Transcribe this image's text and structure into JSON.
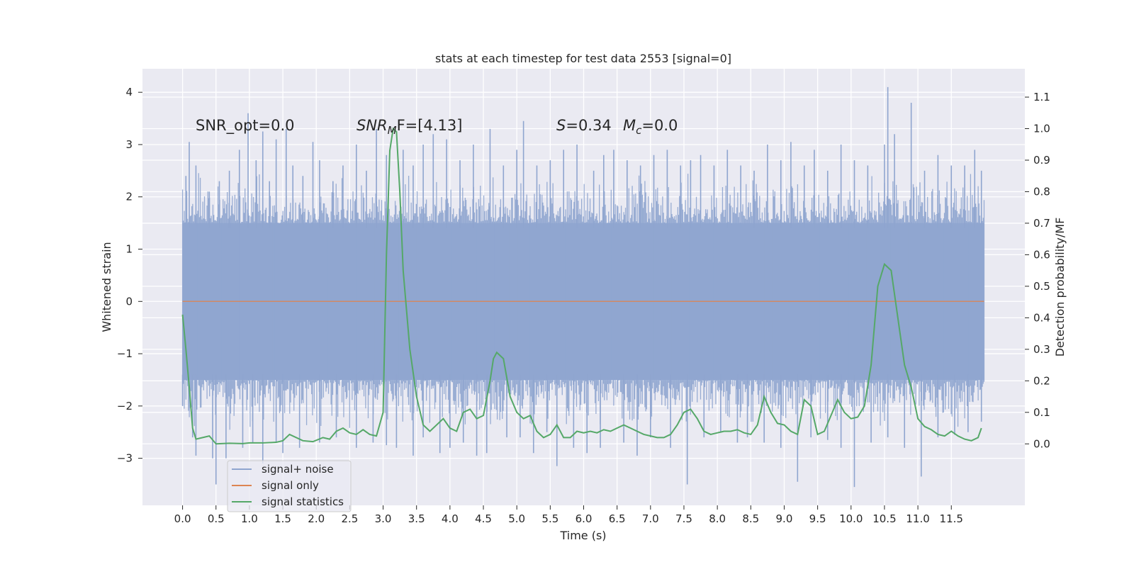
{
  "chart_data": {
    "type": "line",
    "title": "stats at each timestep for test data 2553 [signal=0]",
    "xlabel": "Time (s)",
    "ylabel": "Whitened strain",
    "ylabel_right": "Detection probability/MF",
    "xlim": [
      -0.6,
      12.6
    ],
    "ylim": [
      -3.9,
      4.45
    ],
    "ylim_right": [
      -0.195,
      1.19
    ],
    "x_ticks": [
      0.0,
      0.5,
      1.0,
      1.5,
      2.0,
      2.5,
      3.0,
      3.5,
      4.0,
      4.5,
      5.0,
      5.5,
      6.0,
      6.5,
      7.0,
      7.5,
      8.0,
      8.5,
      9.0,
      9.5,
      10.0,
      10.5,
      11.0,
      11.5
    ],
    "x_tick_labels": [
      "0.0",
      "0.5",
      "1.0",
      "1.5",
      "2.0",
      "2.5",
      "3.0",
      "3.5",
      "4.0",
      "4.5",
      "5.0",
      "5.5",
      "6.0",
      "6.5",
      "7.0",
      "7.5",
      "8.0",
      "8.5",
      "9.0",
      "9.5",
      "10.0",
      "10.5",
      "11.0",
      "11.5"
    ],
    "y_ticks": [
      -3,
      -2,
      -1,
      0,
      1,
      2,
      3,
      4
    ],
    "y_tick_labels": [
      "−3",
      "−2",
      "−1",
      "0",
      "1",
      "2",
      "3",
      "4"
    ],
    "y_right_ticks": [
      0.0,
      0.1,
      0.2,
      0.3,
      0.4,
      0.5,
      0.6,
      0.7,
      0.8,
      0.9,
      1.0,
      1.1
    ],
    "y_right_tick_labels": [
      "0.0",
      "0.1",
      "0.2",
      "0.3",
      "0.4",
      "0.5",
      "0.6",
      "0.7",
      "0.8",
      "0.9",
      "1.0",
      "1.1"
    ],
    "grid": true,
    "legend_position": "bottom-left",
    "annotations": {
      "snr_opt": "SNR_opt=0.0",
      "snr_mf_main": "SNR",
      "snr_mf_sub": "M",
      "snr_mf_tail": "F=[4.13]",
      "s_sym": "S",
      "s_val": "=0.34",
      "mc_sym": "M",
      "mc_sub": "c",
      "mc_val": "=0.0"
    },
    "series": [
      {
        "name": "signal+ noise",
        "color": "#8fa5cf",
        "axis": "left",
        "t_range": [
          0.0,
          11.99
        ],
        "core_band": [
          -1.5,
          1.5
        ],
        "peaks": [
          [
            0.05,
            2.4
          ],
          [
            0.1,
            3.05
          ],
          [
            0.2,
            2.6
          ],
          [
            0.4,
            2.1
          ],
          [
            0.55,
            2.3
          ],
          [
            0.7,
            2.5
          ],
          [
            0.85,
            2.9
          ],
          [
            0.98,
            3.6
          ],
          [
            1.1,
            2.7
          ],
          [
            1.2,
            3.25
          ],
          [
            1.3,
            2.3
          ],
          [
            1.4,
            3.1
          ],
          [
            1.55,
            3.3
          ],
          [
            1.65,
            2.6
          ],
          [
            1.8,
            2.4
          ],
          [
            1.95,
            3.05
          ],
          [
            2.05,
            2.7
          ],
          [
            2.25,
            2.3
          ],
          [
            2.4,
            2.6
          ],
          [
            2.6,
            3.0
          ],
          [
            2.75,
            2.5
          ],
          [
            2.9,
            3.3
          ],
          [
            3.05,
            2.8
          ],
          [
            3.3,
            2.9
          ],
          [
            3.45,
            2.6
          ],
          [
            3.6,
            3.0
          ],
          [
            3.75,
            3.2
          ],
          [
            3.95,
            3.1
          ],
          [
            4.15,
            2.7
          ],
          [
            4.35,
            3.0
          ],
          [
            4.6,
            3.3
          ],
          [
            4.8,
            2.6
          ],
          [
            5.0,
            2.9
          ],
          [
            5.1,
            3.45
          ],
          [
            5.3,
            2.6
          ],
          [
            5.5,
            2.7
          ],
          [
            5.7,
            2.9
          ],
          [
            5.9,
            3.0
          ],
          [
            6.15,
            2.5
          ],
          [
            6.3,
            2.8
          ],
          [
            6.45,
            2.9
          ],
          [
            6.65,
            2.7
          ],
          [
            6.85,
            2.6
          ],
          [
            7.05,
            2.8
          ],
          [
            7.25,
            2.9
          ],
          [
            7.45,
            2.6
          ],
          [
            7.6,
            2.7
          ],
          [
            7.75,
            2.8
          ],
          [
            7.95,
            2.6
          ],
          [
            8.15,
            2.9
          ],
          [
            8.35,
            2.6
          ],
          [
            8.55,
            2.5
          ],
          [
            8.75,
            3.0
          ],
          [
            8.95,
            2.7
          ],
          [
            9.1,
            3.05
          ],
          [
            9.3,
            2.6
          ],
          [
            9.45,
            2.9
          ],
          [
            9.65,
            2.5
          ],
          [
            9.85,
            3.0
          ],
          [
            10.05,
            2.7
          ],
          [
            10.25,
            2.6
          ],
          [
            10.5,
            3.0
          ],
          [
            10.55,
            4.1
          ],
          [
            10.65,
            3.2
          ],
          [
            10.9,
            3.8
          ],
          [
            11.1,
            2.5
          ],
          [
            11.3,
            2.8
          ],
          [
            11.5,
            2.6
          ],
          [
            11.7,
            2.6
          ],
          [
            11.85,
            2.9
          ],
          [
            11.95,
            2.5
          ]
        ],
        "troughs": [
          [
            0.0,
            -2.0
          ],
          [
            0.15,
            -2.6
          ],
          [
            0.2,
            -2.95
          ],
          [
            0.45,
            -3.0
          ],
          [
            0.5,
            -3.5
          ],
          [
            0.65,
            -3.0
          ],
          [
            0.9,
            -2.8
          ],
          [
            1.05,
            -2.7
          ],
          [
            1.2,
            -3.1
          ],
          [
            1.4,
            -2.7
          ],
          [
            1.5,
            -2.9
          ],
          [
            1.75,
            -2.8
          ],
          [
            2.05,
            -2.7
          ],
          [
            2.3,
            -2.6
          ],
          [
            2.6,
            -2.8
          ],
          [
            2.85,
            -2.7
          ],
          [
            3.05,
            -2.75
          ],
          [
            3.2,
            -2.8
          ],
          [
            3.45,
            -2.95
          ],
          [
            3.6,
            -2.6
          ],
          [
            3.85,
            -2.9
          ],
          [
            4.0,
            -2.8
          ],
          [
            4.2,
            -2.7
          ],
          [
            4.4,
            -2.95
          ],
          [
            4.55,
            -2.9
          ],
          [
            4.85,
            -2.6
          ],
          [
            5.05,
            -2.6
          ],
          [
            5.25,
            -2.9
          ],
          [
            5.45,
            -2.5
          ],
          [
            5.6,
            -3.15
          ],
          [
            5.85,
            -2.8
          ],
          [
            6.05,
            -2.9
          ],
          [
            6.25,
            -2.8
          ],
          [
            6.6,
            -2.7
          ],
          [
            6.8,
            -2.95
          ],
          [
            7.0,
            -2.6
          ],
          [
            7.3,
            -2.8
          ],
          [
            7.55,
            -3.5
          ],
          [
            7.8,
            -2.6
          ],
          [
            8.05,
            -2.5
          ],
          [
            8.3,
            -2.7
          ],
          [
            8.45,
            -2.6
          ],
          [
            8.7,
            -2.7
          ],
          [
            8.95,
            -2.8
          ],
          [
            9.2,
            -3.45
          ],
          [
            9.4,
            -2.6
          ],
          [
            9.65,
            -2.65
          ],
          [
            9.85,
            -2.8
          ],
          [
            10.05,
            -3.55
          ],
          [
            10.3,
            -2.7
          ],
          [
            10.55,
            -2.6
          ],
          [
            10.8,
            -2.8
          ],
          [
            11.05,
            -3.35
          ],
          [
            11.3,
            -2.6
          ],
          [
            11.55,
            -2.55
          ],
          [
            11.75,
            -2.5
          ],
          [
            11.95,
            -2.3
          ]
        ]
      },
      {
        "name": "signal only",
        "color": "#dd8452",
        "axis": "left",
        "x": [
          0.0,
          11.99
        ],
        "y": [
          0.0,
          0.0
        ]
      },
      {
        "name": "signal statistics",
        "color": "#55a868",
        "axis": "right",
        "x": [
          0.0,
          0.05,
          0.1,
          0.15,
          0.2,
          0.3,
          0.4,
          0.5,
          0.7,
          0.9,
          1.0,
          1.2,
          1.4,
          1.5,
          1.6,
          1.8,
          1.95,
          2.1,
          2.2,
          2.3,
          2.4,
          2.5,
          2.6,
          2.7,
          2.8,
          2.9,
          3.0,
          3.05,
          3.1,
          3.15,
          3.2,
          3.25,
          3.3,
          3.4,
          3.5,
          3.6,
          3.7,
          3.8,
          3.9,
          4.0,
          4.1,
          4.2,
          4.3,
          4.4,
          4.5,
          4.6,
          4.65,
          4.7,
          4.8,
          4.9,
          5.0,
          5.1,
          5.2,
          5.3,
          5.4,
          5.5,
          5.6,
          5.7,
          5.8,
          5.9,
          6.0,
          6.1,
          6.2,
          6.3,
          6.4,
          6.5,
          6.6,
          6.7,
          6.8,
          6.9,
          7.0,
          7.1,
          7.2,
          7.3,
          7.4,
          7.5,
          7.6,
          7.7,
          7.8,
          7.9,
          8.0,
          8.1,
          8.2,
          8.3,
          8.4,
          8.5,
          8.6,
          8.7,
          8.8,
          8.9,
          9.0,
          9.1,
          9.2,
          9.3,
          9.4,
          9.5,
          9.6,
          9.7,
          9.8,
          9.9,
          10.0,
          10.1,
          10.2,
          10.3,
          10.4,
          10.5,
          10.6,
          10.7,
          10.8,
          10.9,
          11.0,
          11.1,
          11.2,
          11.3,
          11.4,
          11.5,
          11.6,
          11.7,
          11.8,
          11.9,
          11.95
        ],
        "y": [
          0.41,
          0.3,
          0.18,
          0.05,
          0.015,
          0.02,
          0.025,
          0.0,
          0.002,
          0.001,
          0.003,
          0.003,
          0.005,
          0.01,
          0.03,
          0.01,
          0.007,
          0.02,
          0.015,
          0.04,
          0.05,
          0.035,
          0.03,
          0.045,
          0.03,
          0.025,
          0.1,
          0.6,
          0.93,
          1.0,
          0.99,
          0.8,
          0.55,
          0.3,
          0.15,
          0.06,
          0.04,
          0.06,
          0.08,
          0.05,
          0.04,
          0.1,
          0.11,
          0.08,
          0.09,
          0.2,
          0.27,
          0.29,
          0.27,
          0.15,
          0.1,
          0.08,
          0.09,
          0.04,
          0.02,
          0.03,
          0.06,
          0.02,
          0.02,
          0.04,
          0.035,
          0.04,
          0.035,
          0.045,
          0.04,
          0.05,
          0.06,
          0.05,
          0.04,
          0.03,
          0.025,
          0.02,
          0.02,
          0.03,
          0.06,
          0.1,
          0.11,
          0.08,
          0.04,
          0.03,
          0.035,
          0.04,
          0.04,
          0.045,
          0.035,
          0.03,
          0.06,
          0.15,
          0.1,
          0.065,
          0.06,
          0.04,
          0.03,
          0.14,
          0.12,
          0.03,
          0.04,
          0.09,
          0.14,
          0.1,
          0.08,
          0.085,
          0.12,
          0.25,
          0.5,
          0.57,
          0.55,
          0.4,
          0.25,
          0.18,
          0.08,
          0.055,
          0.045,
          0.03,
          0.025,
          0.04,
          0.025,
          0.015,
          0.01,
          0.02,
          0.05
        ]
      }
    ]
  }
}
